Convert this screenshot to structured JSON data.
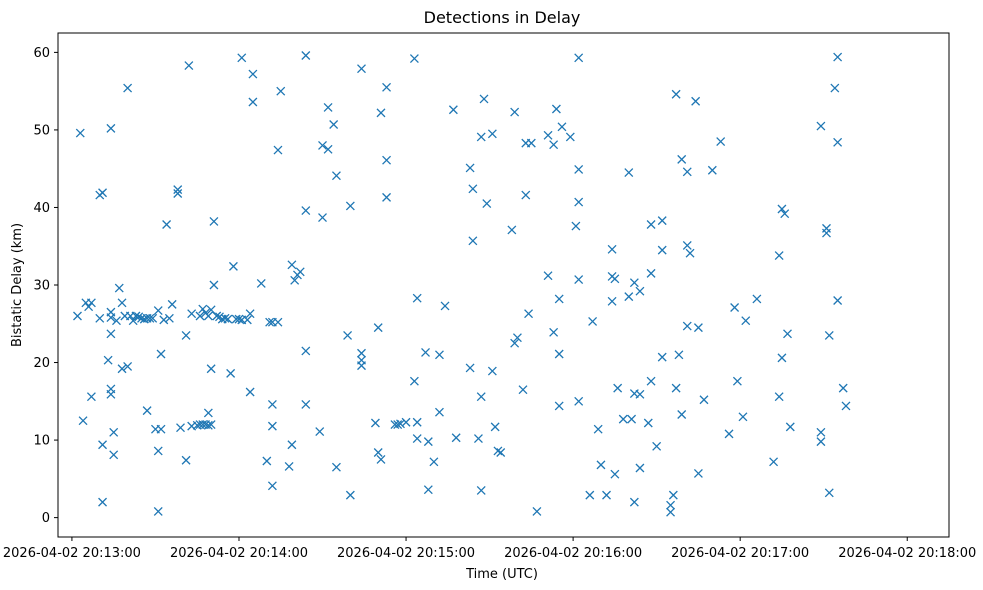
{
  "chart_data": {
    "type": "scatter",
    "title": "Detections in Delay",
    "xlabel": "Time (UTC)",
    "ylabel": "Bistatic Delay (km)",
    "marker": "x",
    "color": "#1f77b4",
    "grid": false,
    "x_date": "2026-04-02",
    "xlim": [
      "20:12:55",
      "20:18:15"
    ],
    "ylim": [
      -2.5,
      62.5
    ],
    "x_ticks": [
      "2026-04-02 20:13:00",
      "2026-04-02 20:14:00",
      "2026-04-02 20:15:00",
      "2026-04-02 20:16:00",
      "2026-04-02 20:17:00",
      "2026-04-02 20:18:00"
    ],
    "y_ticks": [
      0,
      10,
      20,
      30,
      40,
      50,
      60
    ],
    "points": [
      [
        "20:13:03",
        49.6
      ],
      [
        "20:13:02",
        26.0
      ],
      [
        "20:13:04",
        12.5
      ],
      [
        "20:13:05",
        27.7
      ],
      [
        "20:13:06",
        27.2
      ],
      [
        "20:13:07",
        27.7
      ],
      [
        "20:13:07",
        15.6
      ],
      [
        "20:13:10",
        41.6
      ],
      [
        "20:13:11",
        41.9
      ],
      [
        "20:13:10",
        25.7
      ],
      [
        "20:13:11",
        2.0
      ],
      [
        "20:13:11",
        9.4
      ],
      [
        "20:13:13",
        20.3
      ],
      [
        "20:13:14",
        50.2
      ],
      [
        "20:13:14",
        26.5
      ],
      [
        "20:13:14",
        25.8
      ],
      [
        "20:13:14",
        23.7
      ],
      [
        "20:13:14",
        16.6
      ],
      [
        "20:13:14",
        15.9
      ],
      [
        "20:13:15",
        11.0
      ],
      [
        "20:13:15",
        8.1
      ],
      [
        "20:13:16",
        25.4
      ],
      [
        "20:13:17",
        29.6
      ],
      [
        "20:13:18",
        27.7
      ],
      [
        "20:13:18",
        19.2
      ],
      [
        "20:13:19",
        26.0
      ],
      [
        "20:13:20",
        55.4
      ],
      [
        "20:13:20",
        19.5
      ],
      [
        "20:13:21",
        26.0
      ],
      [
        "20:13:22",
        25.4
      ],
      [
        "20:13:23",
        26.0
      ],
      [
        "20:13:24",
        25.9
      ],
      [
        "20:13:25",
        25.7
      ],
      [
        "20:13:26",
        25.6
      ],
      [
        "20:13:27",
        25.7
      ],
      [
        "20:13:27",
        13.8
      ],
      [
        "20:13:28",
        25.7
      ],
      [
        "20:13:29",
        25.7
      ],
      [
        "20:13:30",
        11.4
      ],
      [
        "20:13:31",
        26.7
      ],
      [
        "20:13:31",
        8.6
      ],
      [
        "20:13:31",
        0.8
      ],
      [
        "20:13:32",
        21.1
      ],
      [
        "20:13:32",
        11.4
      ],
      [
        "20:13:33",
        25.5
      ],
      [
        "20:13:34",
        37.8
      ],
      [
        "20:13:35",
        25.7
      ],
      [
        "20:13:36",
        27.5
      ],
      [
        "20:13:38",
        42.3
      ],
      [
        "20:13:38",
        41.8
      ],
      [
        "20:13:39",
        11.6
      ],
      [
        "20:13:41",
        23.5
      ],
      [
        "20:13:41",
        7.4
      ],
      [
        "20:13:42",
        58.3
      ],
      [
        "20:13:43",
        26.3
      ],
      [
        "20:13:43",
        11.8
      ],
      [
        "20:13:45",
        11.9
      ],
      [
        "20:13:46",
        26.0
      ],
      [
        "20:13:46",
        12.0
      ],
      [
        "20:13:47",
        26.9
      ],
      [
        "20:13:47",
        12.0
      ],
      [
        "20:13:48",
        26.4
      ],
      [
        "20:13:48",
        12.0
      ],
      [
        "20:13:49",
        26.0
      ],
      [
        "20:13:49",
        13.5
      ],
      [
        "20:13:49",
        11.9
      ],
      [
        "20:13:50",
        26.8
      ],
      [
        "20:13:50",
        19.2
      ],
      [
        "20:13:50",
        12.0
      ],
      [
        "20:13:51",
        38.2
      ],
      [
        "20:13:51",
        30.0
      ],
      [
        "20:13:52",
        26.0
      ],
      [
        "20:13:53",
        25.9
      ],
      [
        "20:13:54",
        25.6
      ],
      [
        "20:13:55",
        25.7
      ],
      [
        "20:13:56",
        25.6
      ],
      [
        "20:13:57",
        18.6
      ],
      [
        "20:13:58",
        32.4
      ],
      [
        "20:13:59",
        25.6
      ],
      [
        "20:14:00",
        25.6
      ],
      [
        "20:14:01",
        25.5
      ],
      [
        "20:14:01",
        59.3
      ],
      [
        "20:14:03",
        25.5
      ],
      [
        "20:14:04",
        16.2
      ],
      [
        "20:14:04",
        26.3
      ],
      [
        "20:14:05",
        53.6
      ],
      [
        "20:14:05",
        57.2
      ],
      [
        "20:14:08",
        30.2
      ],
      [
        "20:14:10",
        7.3
      ],
      [
        "20:14:11",
        25.2
      ],
      [
        "20:14:12",
        25.2
      ],
      [
        "20:14:12",
        14.6
      ],
      [
        "20:14:12",
        11.8
      ],
      [
        "20:14:12",
        4.1
      ],
      [
        "20:14:14",
        47.4
      ],
      [
        "20:14:14",
        25.2
      ],
      [
        "20:14:15",
        55.0
      ],
      [
        "20:14:18",
        6.6
      ],
      [
        "20:14:19",
        32.6
      ],
      [
        "20:14:19",
        9.4
      ],
      [
        "20:14:20",
        30.6
      ],
      [
        "20:14:21",
        31.3
      ],
      [
        "20:14:22",
        31.7
      ],
      [
        "20:14:24",
        39.6
      ],
      [
        "20:14:24",
        21.5
      ],
      [
        "20:14:24",
        14.6
      ],
      [
        "20:14:24",
        59.6
      ],
      [
        "20:14:29",
        11.1
      ],
      [
        "20:14:30",
        48.0
      ],
      [
        "20:14:30",
        38.7
      ],
      [
        "20:14:32",
        52.9
      ],
      [
        "20:14:32",
        47.5
      ],
      [
        "20:14:34",
        50.7
      ],
      [
        "20:14:35",
        44.1
      ],
      [
        "20:14:35",
        6.5
      ],
      [
        "20:14:39",
        23.5
      ],
      [
        "20:14:40",
        40.2
      ],
      [
        "20:14:40",
        2.9
      ],
      [
        "20:14:44",
        57.9
      ],
      [
        "20:14:44",
        21.2
      ],
      [
        "20:14:44",
        20.3
      ],
      [
        "20:14:44",
        19.6
      ],
      [
        "20:14:49",
        12.2
      ],
      [
        "20:14:50",
        24.5
      ],
      [
        "20:14:50",
        8.4
      ],
      [
        "20:14:51",
        7.5
      ],
      [
        "20:14:51",
        52.2
      ],
      [
        "20:14:53",
        41.3
      ],
      [
        "20:14:53",
        46.1
      ],
      [
        "20:14:53",
        55.5
      ],
      [
        "20:14:56",
        12.0
      ],
      [
        "20:14:57",
        12.0
      ],
      [
        "20:14:58",
        12.1
      ],
      [
        "20:15:00",
        12.3
      ],
      [
        "20:15:03",
        59.2
      ],
      [
        "20:15:03",
        17.6
      ],
      [
        "20:15:04",
        28.3
      ],
      [
        "20:15:04",
        12.3
      ],
      [
        "20:15:04",
        10.2
      ],
      [
        "20:15:07",
        21.3
      ],
      [
        "20:15:08",
        9.8
      ],
      [
        "20:15:08",
        3.6
      ],
      [
        "20:15:10",
        7.2
      ],
      [
        "20:15:12",
        21.0
      ],
      [
        "20:15:12",
        13.6
      ],
      [
        "20:15:14",
        27.3
      ],
      [
        "20:15:17",
        52.6
      ],
      [
        "20:15:18",
        10.3
      ],
      [
        "20:15:23",
        19.3
      ],
      [
        "20:15:23",
        45.1
      ],
      [
        "20:15:24",
        42.4
      ],
      [
        "20:15:24",
        35.7
      ],
      [
        "20:15:26",
        10.2
      ],
      [
        "20:15:27",
        49.1
      ],
      [
        "20:15:27",
        15.6
      ],
      [
        "20:15:27",
        3.5
      ],
      [
        "20:15:28",
        54.0
      ],
      [
        "20:15:29",
        40.5
      ],
      [
        "20:15:31",
        18.9
      ],
      [
        "20:15:31",
        49.5
      ],
      [
        "20:15:32",
        11.7
      ],
      [
        "20:15:33",
        8.6
      ],
      [
        "20:15:34",
        8.4
      ],
      [
        "20:15:38",
        37.1
      ],
      [
        "20:15:39",
        22.5
      ],
      [
        "20:15:39",
        52.3
      ],
      [
        "20:15:40",
        23.2
      ],
      [
        "20:15:42",
        16.5
      ],
      [
        "20:15:43",
        41.6
      ],
      [
        "20:15:43",
        48.3
      ],
      [
        "20:15:44",
        26.3
      ],
      [
        "20:15:45",
        48.3
      ],
      [
        "20:15:47",
        0.8
      ],
      [
        "20:15:51",
        31.2
      ],
      [
        "20:15:51",
        49.3
      ],
      [
        "20:15:53",
        48.1
      ],
      [
        "20:15:53",
        23.9
      ],
      [
        "20:15:54",
        52.7
      ],
      [
        "20:15:55",
        28.2
      ],
      [
        "20:15:55",
        21.1
      ],
      [
        "20:15:55",
        14.4
      ],
      [
        "20:15:56",
        50.4
      ],
      [
        "20:15:59",
        49.1
      ],
      [
        "20:16:01",
        37.6
      ],
      [
        "20:16:02",
        59.3
      ],
      [
        "20:16:02",
        44.9
      ],
      [
        "20:16:02",
        40.7
      ],
      [
        "20:16:02",
        30.7
      ],
      [
        "20:16:02",
        15.0
      ],
      [
        "20:16:06",
        2.9
      ],
      [
        "20:16:07",
        25.3
      ],
      [
        "20:16:09",
        11.4
      ],
      [
        "20:16:10",
        6.8
      ],
      [
        "20:16:12",
        2.9
      ],
      [
        "20:16:14",
        34.6
      ],
      [
        "20:16:14",
        31.1
      ],
      [
        "20:16:14",
        27.9
      ],
      [
        "20:16:15",
        30.8
      ],
      [
        "20:16:15",
        5.6
      ],
      [
        "20:16:16",
        16.7
      ],
      [
        "20:16:18",
        12.7
      ],
      [
        "20:16:20",
        44.5
      ],
      [
        "20:16:20",
        28.5
      ],
      [
        "20:16:21",
        12.7
      ],
      [
        "20:16:22",
        30.3
      ],
      [
        "20:16:22",
        16.0
      ],
      [
        "20:16:22",
        2.0
      ],
      [
        "20:16:24",
        29.2
      ],
      [
        "20:16:24",
        15.9
      ],
      [
        "20:16:24",
        6.4
      ],
      [
        "20:16:27",
        12.2
      ],
      [
        "20:16:28",
        17.6
      ],
      [
        "20:16:28",
        31.5
      ],
      [
        "20:16:28",
        37.8
      ],
      [
        "20:16:30",
        9.2
      ],
      [
        "20:16:32",
        20.7
      ],
      [
        "20:16:32",
        38.3
      ],
      [
        "20:16:32",
        34.5
      ],
      [
        "20:16:35",
        1.6
      ],
      [
        "20:16:35",
        0.7
      ],
      [
        "20:16:36",
        2.9
      ],
      [
        "20:16:37",
        16.7
      ],
      [
        "20:16:37",
        54.6
      ],
      [
        "20:16:38",
        21.0
      ],
      [
        "20:16:39",
        46.2
      ],
      [
        "20:16:39",
        13.3
      ],
      [
        "20:16:41",
        35.1
      ],
      [
        "20:16:42",
        34.1
      ],
      [
        "20:16:41",
        44.6
      ],
      [
        "20:16:41",
        24.7
      ],
      [
        "20:16:44",
        53.7
      ],
      [
        "20:16:45",
        24.5
      ],
      [
        "20:16:45",
        5.7
      ],
      [
        "20:16:47",
        15.2
      ],
      [
        "20:16:50",
        44.8
      ],
      [
        "20:16:53",
        48.5
      ],
      [
        "20:16:56",
        10.8
      ],
      [
        "20:16:58",
        27.1
      ],
      [
        "20:16:59",
        17.6
      ],
      [
        "20:17:01",
        13.0
      ],
      [
        "20:17:02",
        25.4
      ],
      [
        "20:17:06",
        28.2
      ],
      [
        "20:17:12",
        7.2
      ],
      [
        "20:17:14",
        15.6
      ],
      [
        "20:17:14",
        33.8
      ],
      [
        "20:17:15",
        39.8
      ],
      [
        "20:17:15",
        20.6
      ],
      [
        "20:17:16",
        39.2
      ],
      [
        "20:17:17",
        23.7
      ],
      [
        "20:17:18",
        11.7
      ],
      [
        "20:17:29",
        50.5
      ],
      [
        "20:17:29",
        11.0
      ],
      [
        "20:17:29",
        9.8
      ],
      [
        "20:17:31",
        37.3
      ],
      [
        "20:17:31",
        36.7
      ],
      [
        "20:17:32",
        3.2
      ],
      [
        "20:17:32",
        23.5
      ],
      [
        "20:17:34",
        55.4
      ],
      [
        "20:17:35",
        59.4
      ],
      [
        "20:17:35",
        48.4
      ],
      [
        "20:17:35",
        28.0
      ],
      [
        "20:17:37",
        16.7
      ],
      [
        "20:17:38",
        14.4
      ]
    ]
  }
}
